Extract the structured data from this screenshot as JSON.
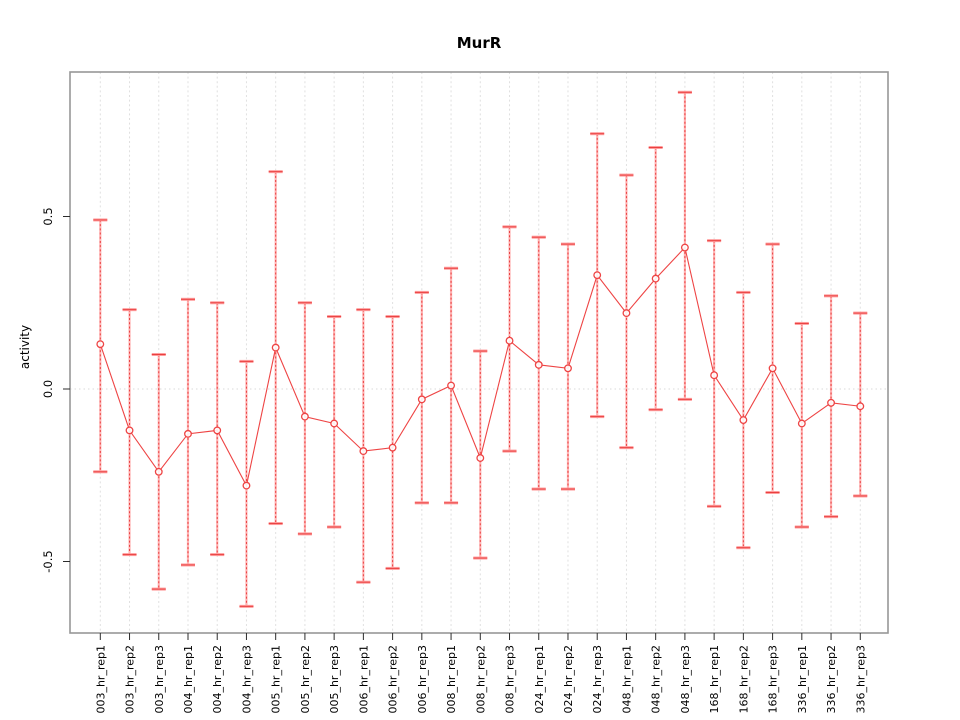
{
  "chart_data": {
    "type": "line",
    "title": "MurR",
    "xlabel": "",
    "ylabel": "activity",
    "ylim": [
      -0.71,
      0.92
    ],
    "yticks": [
      -0.5,
      0.0,
      0.5
    ],
    "ytick_labels": [
      "-0.5",
      "0.0",
      "0.5"
    ],
    "grid": "vertical dotted gridline at every category; dotted horizontal reference line at y=0",
    "legend": "none",
    "point_style": "open circles connected by line, with error bars (caps)",
    "categories": [
      "003_hr_rep1",
      "003_hr_rep2",
      "003_hr_rep3",
      "004_hr_rep1",
      "004_hr_rep2",
      "004_hr_rep3",
      "005_hr_rep1",
      "005_hr_rep2",
      "005_hr_rep3",
      "006_hr_rep1",
      "006_hr_rep2",
      "006_hr_rep3",
      "008_hr_rep1",
      "008_hr_rep2",
      "008_hr_rep3",
      "024_hr_rep1",
      "024_hr_rep2",
      "024_hr_rep3",
      "048_hr_rep1",
      "048_hr_rep2",
      "048_hr_rep3",
      "168_hr_rep1",
      "168_hr_rep2",
      "168_hr_rep3",
      "336_hr_rep1",
      "336_hr_rep2",
      "336_hr_rep3"
    ],
    "series": [
      {
        "name": "activity",
        "values": [
          0.13,
          -0.12,
          -0.24,
          -0.13,
          -0.12,
          -0.28,
          0.12,
          -0.08,
          -0.1,
          -0.18,
          -0.17,
          -0.03,
          0.01,
          -0.2,
          0.14,
          0.07,
          0.06,
          0.33,
          0.22,
          0.32,
          0.41,
          0.04,
          -0.09,
          0.06,
          -0.1,
          -0.04,
          -0.05
        ],
        "error_upper": [
          0.49,
          0.23,
          0.1,
          0.26,
          0.25,
          0.08,
          0.63,
          0.25,
          0.21,
          0.23,
          0.21,
          0.28,
          0.35,
          0.11,
          0.47,
          0.44,
          0.42,
          0.74,
          0.62,
          0.7,
          0.86,
          0.43,
          0.28,
          0.42,
          0.19,
          0.27,
          0.22
        ],
        "error_lower": [
          -0.24,
          -0.48,
          -0.58,
          -0.51,
          -0.48,
          -0.63,
          -0.39,
          -0.42,
          -0.4,
          -0.56,
          -0.52,
          -0.33,
          -0.33,
          -0.49,
          -0.18,
          -0.29,
          -0.29,
          -0.08,
          -0.17,
          -0.06,
          -0.03,
          -0.34,
          -0.46,
          -0.3,
          -0.4,
          -0.37,
          -0.31
        ]
      }
    ]
  },
  "colors": {
    "series_main": "#ee4444",
    "errorbar_light": "#ffb4b4",
    "errorbar_dash": "#e94040",
    "cap_light": "#ff9d9d",
    "gridline": "#e0e0e0",
    "zero_line": "#d9d9d9",
    "box_border": "#979797",
    "tick": "#2b2b2b",
    "text": "#000000"
  }
}
